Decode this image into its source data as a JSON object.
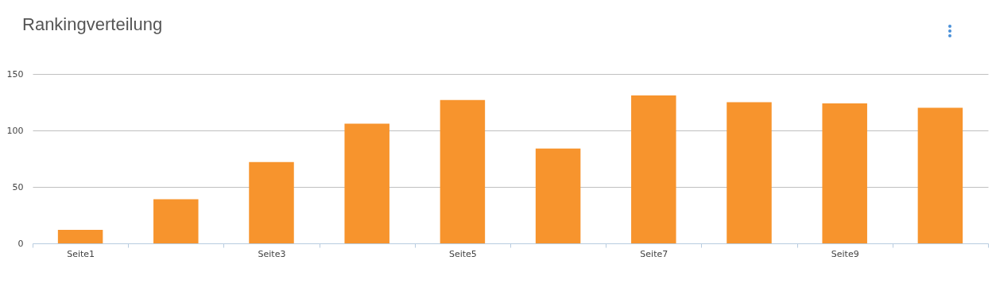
{
  "chart_data": {
    "type": "bar",
    "title": "Rankingverteilung",
    "categories": [
      "Seite1",
      null,
      "Seite3",
      null,
      "Seite5",
      null,
      "Seite7",
      null,
      "Seite9",
      null
    ],
    "series": [
      {
        "color": "#f7942d",
        "values": [
          12,
          39,
          72,
          106,
          127,
          84,
          131,
          125,
          124,
          120
        ]
      }
    ],
    "ylim": [
      0,
      150
    ],
    "yticks": [
      0,
      50,
      100,
      150
    ],
    "grid": "y",
    "legend": false
  }
}
